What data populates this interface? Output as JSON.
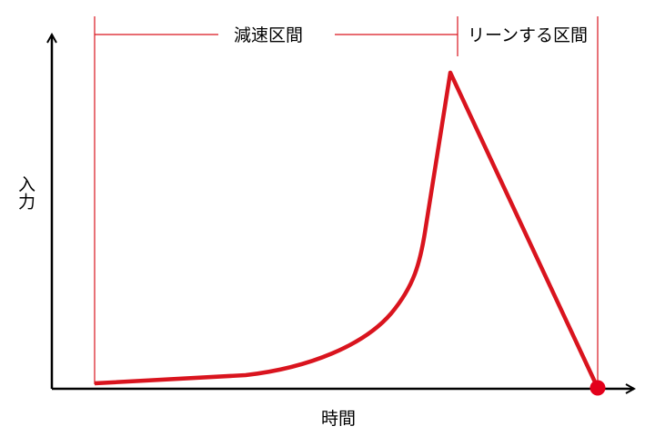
{
  "labels": {
    "deceleration": "減速区間",
    "lean": "リーンする区間",
    "y_axis": "入力",
    "x_axis": "時間"
  }
}
